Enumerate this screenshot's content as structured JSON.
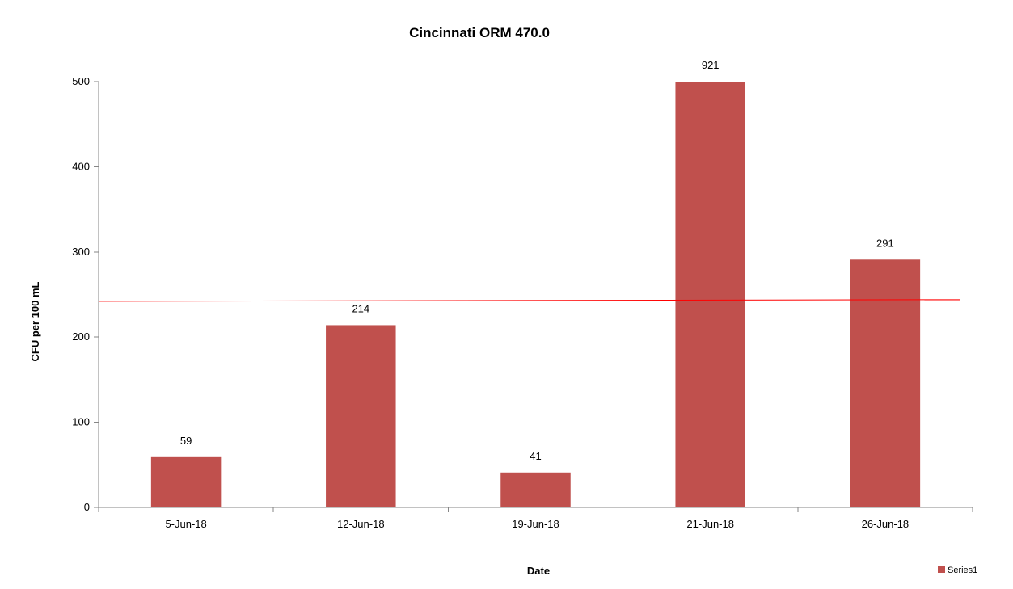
{
  "chart_data": {
    "type": "bar",
    "title": "Cincinnati ORM 470.0",
    "xlabel": "Date",
    "ylabel": "CFU per 100 mL",
    "categories": [
      "5-Jun-18",
      "12-Jun-18",
      "19-Jun-18",
      "21-Jun-18",
      "26-Jun-18"
    ],
    "series": [
      {
        "name": "Series1",
        "values": [
          59,
          214,
          41,
          921,
          291
        ],
        "data_labels": [
          "59",
          "214",
          "41",
          "921",
          "291"
        ],
        "color": "#c0504d"
      }
    ],
    "ylim": [
      0,
      500
    ],
    "yticks": [
      0,
      100,
      200,
      300,
      400,
      500
    ],
    "ytick_labels": [
      "0",
      "100",
      "200",
      "300",
      "400",
      "500"
    ],
    "clipped_at_ylim": true,
    "reference_line": {
      "y_start": 242,
      "y_end": 244,
      "color": "#ff0000"
    },
    "grid": false,
    "legend_position": "bottom-right"
  }
}
